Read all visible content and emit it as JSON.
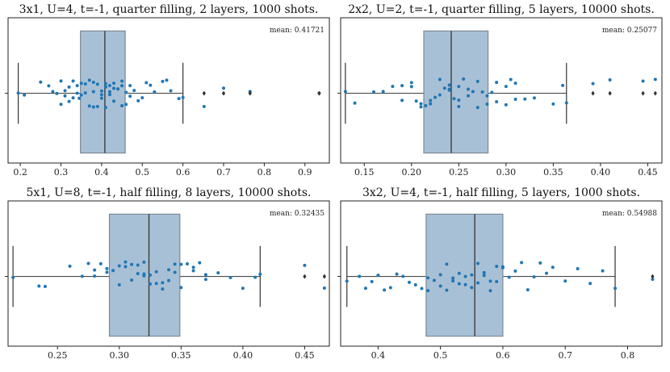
{
  "chart_data": [
    {
      "type": "box_strip",
      "title": "3x1, U=4, t=-1, quarter filling, 2 layers, 1000 shots.",
      "mean_label": "mean: 0.41721",
      "xlim": [
        0.17,
        0.96
      ],
      "xticks": [
        0.2,
        0.3,
        0.4,
        0.5,
        0.6,
        0.7,
        0.8,
        0.9
      ],
      "xtick_labels": [
        "0.2",
        "0.3",
        "0.4",
        "0.5",
        "0.6",
        "0.7",
        "0.8",
        "0.9"
      ],
      "box": {
        "q1": 0.348,
        "median": 0.408,
        "q3": 0.458,
        "whisker_low": 0.195,
        "whisker_high": 0.6
      },
      "outliers": [
        0.652,
        0.7,
        0.765,
        0.935
      ],
      "points": [
        0.195,
        0.21,
        0.25,
        0.27,
        0.28,
        0.29,
        0.3,
        0.3,
        0.31,
        0.31,
        0.32,
        0.32,
        0.33,
        0.33,
        0.34,
        0.34,
        0.345,
        0.35,
        0.35,
        0.36,
        0.36,
        0.37,
        0.37,
        0.38,
        0.38,
        0.38,
        0.39,
        0.39,
        0.4,
        0.4,
        0.4,
        0.41,
        0.41,
        0.41,
        0.42,
        0.42,
        0.42,
        0.43,
        0.43,
        0.43,
        0.44,
        0.44,
        0.45,
        0.45,
        0.45,
        0.46,
        0.46,
        0.47,
        0.47,
        0.48,
        0.49,
        0.5,
        0.51,
        0.52,
        0.53,
        0.55,
        0.56,
        0.57,
        0.59,
        0.6,
        0.652,
        0.7,
        0.765,
        0.935
      ]
    },
    {
      "type": "box_strip",
      "title": "2x2, U=2, t=-1, quarter filling, 5 layers, 10000 shots.",
      "mean_label": "mean: 0.25077",
      "xlim": [
        0.125,
        0.465
      ],
      "xticks": [
        0.15,
        0.2,
        0.25,
        0.3,
        0.35,
        0.4,
        0.45
      ],
      "xtick_labels": [
        "0.15",
        "0.20",
        "0.25",
        "0.30",
        "0.35",
        "0.40",
        "0.45"
      ],
      "box": {
        "q1": 0.213,
        "median": 0.242,
        "q3": 0.281,
        "whisker_low": 0.13,
        "whisker_high": 0.364
      },
      "outliers": [
        0.392,
        0.41,
        0.445,
        0.458
      ],
      "points": [
        0.13,
        0.14,
        0.16,
        0.17,
        0.18,
        0.19,
        0.19,
        0.2,
        0.2,
        0.205,
        0.21,
        0.21,
        0.215,
        0.22,
        0.22,
        0.225,
        0.23,
        0.23,
        0.235,
        0.24,
        0.24,
        0.24,
        0.245,
        0.25,
        0.25,
        0.25,
        0.255,
        0.26,
        0.26,
        0.265,
        0.27,
        0.27,
        0.275,
        0.28,
        0.28,
        0.285,
        0.29,
        0.29,
        0.3,
        0.3,
        0.305,
        0.31,
        0.31,
        0.32,
        0.33,
        0.35,
        0.36,
        0.364,
        0.392,
        0.41,
        0.445,
        0.458
      ]
    },
    {
      "type": "box_strip",
      "title": "5x1, U=8, t=-1, half filling, 8 layers, 10000 shots.",
      "mean_label": "mean: 0.32435",
      "xlim": [
        0.21,
        0.47
      ],
      "xticks": [
        0.25,
        0.3,
        0.35,
        0.4,
        0.45
      ],
      "xtick_labels": [
        "0.25",
        "0.30",
        "0.35",
        "0.40",
        "0.45"
      ],
      "box": {
        "q1": 0.292,
        "median": 0.324,
        "q3": 0.349,
        "whisker_low": 0.214,
        "whisker_high": 0.414
      },
      "outliers": [
        0.45,
        0.466
      ],
      "points": [
        0.214,
        0.235,
        0.24,
        0.26,
        0.27,
        0.275,
        0.28,
        0.28,
        0.285,
        0.29,
        0.29,
        0.295,
        0.3,
        0.3,
        0.305,
        0.305,
        0.31,
        0.31,
        0.315,
        0.315,
        0.32,
        0.32,
        0.32,
        0.325,
        0.325,
        0.33,
        0.33,
        0.335,
        0.335,
        0.34,
        0.34,
        0.345,
        0.345,
        0.35,
        0.35,
        0.355,
        0.36,
        0.36,
        0.365,
        0.37,
        0.37,
        0.38,
        0.39,
        0.4,
        0.41,
        0.414,
        0.45,
        0.466
      ]
    },
    {
      "type": "box_strip",
      "title": "3x2, U=4, t=-1, half filling, 5 layers, 1000 shots.",
      "mean_label": "mean: 0.54988",
      "xlim": [
        0.34,
        0.855
      ],
      "xticks": [
        0.4,
        0.5,
        0.6,
        0.7,
        0.8
      ],
      "xtick_labels": [
        "0.4",
        "0.5",
        "0.6",
        "0.7",
        "0.8"
      ],
      "box": {
        "q1": 0.477,
        "median": 0.555,
        "q3": 0.6,
        "whisker_low": 0.35,
        "whisker_high": 0.78
      },
      "outliers": [
        0.84
      ],
      "points": [
        0.35,
        0.37,
        0.38,
        0.39,
        0.4,
        0.41,
        0.42,
        0.43,
        0.44,
        0.45,
        0.46,
        0.47,
        0.48,
        0.48,
        0.49,
        0.5,
        0.5,
        0.51,
        0.51,
        0.52,
        0.52,
        0.53,
        0.53,
        0.54,
        0.54,
        0.55,
        0.55,
        0.56,
        0.56,
        0.57,
        0.57,
        0.58,
        0.58,
        0.59,
        0.59,
        0.6,
        0.6,
        0.61,
        0.62,
        0.63,
        0.64,
        0.65,
        0.66,
        0.67,
        0.68,
        0.7,
        0.72,
        0.74,
        0.76,
        0.78,
        0.84
      ]
    }
  ]
}
